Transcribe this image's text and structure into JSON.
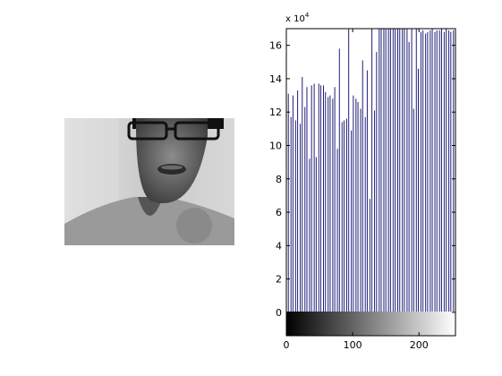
{
  "image_panel": {
    "subject": "grayscale photo of a person wearing glasses"
  },
  "chart_data": {
    "type": "bar",
    "title": "",
    "xlabel": "",
    "ylabel": "",
    "y_exponent_label": "x 10^4",
    "y_exponent_base": "x 10",
    "y_exponent_power": "4",
    "xlim": [
      0,
      255
    ],
    "ylim": [
      -1.4,
      17
    ],
    "x_ticks": [
      0,
      100,
      200
    ],
    "x_tick_labels": [
      "0",
      "100",
      "200"
    ],
    "y_ticks": [
      0,
      2,
      4,
      6,
      8,
      10,
      12,
      14,
      16
    ],
    "y_tick_labels": [
      "0",
      "2",
      "4",
      "6",
      "8",
      "10",
      "12",
      "14",
      "16"
    ],
    "grid": false,
    "colorbar": "grayscale gradient black to white along x from 0 to 255",
    "bar_color": "#1f1f7a",
    "series": [
      {
        "x": [
          0,
          3,
          7,
          10,
          14,
          17,
          21,
          24,
          28,
          31,
          35,
          38,
          42,
          45,
          49,
          52,
          56,
          59,
          63,
          66,
          70,
          73,
          77,
          80,
          84,
          87,
          91,
          94,
          98,
          101,
          105,
          108,
          112,
          115,
          119,
          122,
          126,
          129,
          133,
          136,
          140,
          143,
          147,
          150,
          154,
          157,
          161,
          164,
          168,
          171,
          175,
          178,
          182,
          185,
          189,
          192,
          196,
          199,
          203,
          206,
          210,
          213,
          217,
          220,
          224,
          227,
          231,
          234,
          238,
          241,
          245,
          248,
          252,
          255
        ],
        "values": [
          12.4,
          13.1,
          11.7,
          13.0,
          11.5,
          13.3,
          11.3,
          14.1,
          12.3,
          13.5,
          9.2,
          13.6,
          13.7,
          9.3,
          13.7,
          13.6,
          13.6,
          13.2,
          12.9,
          13.0,
          12.8,
          13.5,
          9.8,
          15.8,
          11.4,
          11.5,
          11.6,
          17,
          10.9,
          13.0,
          12.8,
          12.6,
          12.2,
          15.1,
          11.7,
          14.5,
          6.8,
          17,
          12.1,
          15.6,
          17,
          17,
          17,
          17,
          17,
          17,
          17,
          17,
          17,
          17,
          17,
          17,
          17,
          16.2,
          17,
          12.2,
          17,
          14.6,
          16.8,
          16.9,
          16.7,
          16.8,
          16.9,
          17,
          16.8,
          16.9,
          16.9,
          17,
          16.8,
          17,
          16.9,
          16.8,
          16.9,
          14.6
        ]
      }
    ]
  }
}
